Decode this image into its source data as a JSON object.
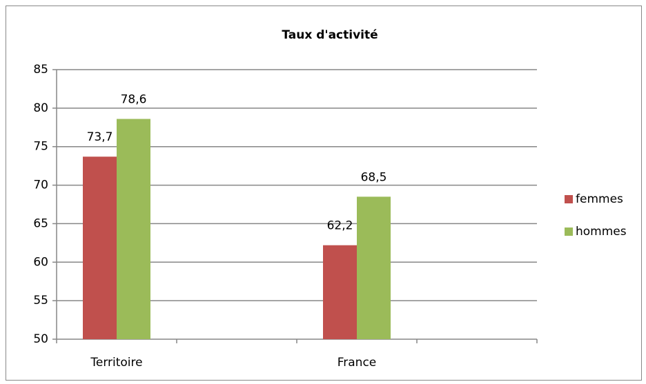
{
  "chart_data": {
    "type": "bar",
    "title": "Taux d'activité",
    "categories": [
      "Territoire",
      null,
      "France",
      null
    ],
    "series": [
      {
        "name": "femmes",
        "color": "#c0504d",
        "values": [
          73.7,
          null,
          62.2,
          null
        ],
        "value_labels": [
          "73,7",
          null,
          "62,2",
          null
        ]
      },
      {
        "name": "hommes",
        "color": "#9bbb59",
        "values": [
          78.6,
          null,
          68.5,
          null
        ],
        "value_labels": [
          "78,6",
          null,
          "68,5",
          null
        ]
      }
    ],
    "ylim": [
      50,
      85
    ],
    "yticks": [
      50,
      55,
      60,
      65,
      70,
      75,
      80,
      85
    ],
    "grid": true,
    "legend": "right"
  }
}
